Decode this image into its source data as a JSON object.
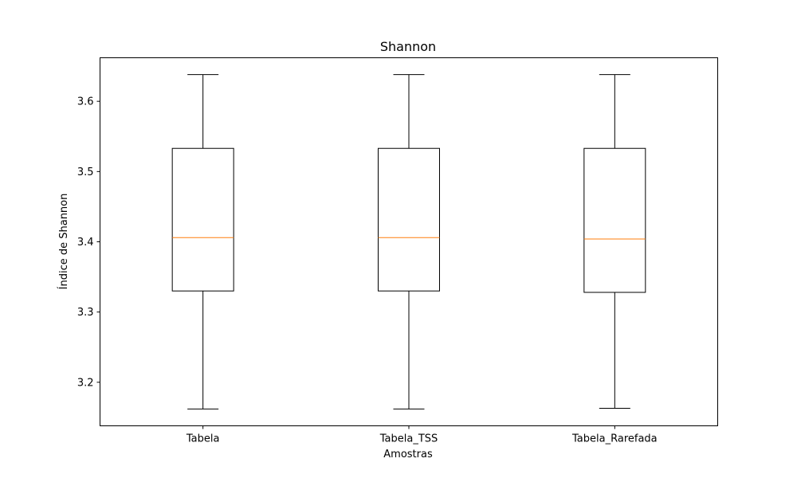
{
  "chart_data": {
    "type": "box",
    "title": "Shannon",
    "xlabel": "Amostras",
    "ylabel": "Índice de Shannon",
    "categories": [
      "Tabela",
      "Tabela_TSS",
      "Tabela_Rarefada"
    ],
    "boxes": [
      {
        "name": "Tabela",
        "whisker_low": 3.162,
        "q1": 3.33,
        "median": 3.406,
        "q3": 3.533,
        "whisker_high": 3.638
      },
      {
        "name": "Tabela_TSS",
        "whisker_low": 3.162,
        "q1": 3.33,
        "median": 3.406,
        "q3": 3.533,
        "whisker_high": 3.638
      },
      {
        "name": "Tabela_Rarefada",
        "whisker_low": 3.163,
        "q1": 3.328,
        "median": 3.404,
        "q3": 3.533,
        "whisker_high": 3.638
      }
    ],
    "ylim": [
      3.138,
      3.662
    ],
    "yticks": [
      "3.2",
      "3.3",
      "3.4",
      "3.5",
      "3.6"
    ],
    "grid": false,
    "colors": {
      "box": "#000000",
      "median": "#ff7f0e",
      "whisker": "#000000"
    }
  }
}
